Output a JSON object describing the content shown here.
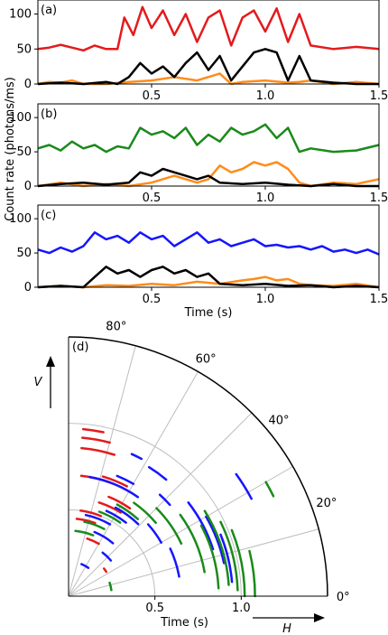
{
  "chart_data": [
    {
      "type": "line",
      "panel_label": "(a)",
      "xlim": [
        0.0,
        1.5
      ],
      "ylim": [
        0,
        120
      ],
      "xticks": [
        "0.5",
        "1.0",
        "1.5"
      ],
      "yticks": [
        "0",
        "50",
        "100"
      ],
      "xlabel": "",
      "ylabel": "",
      "series": [
        {
          "color": "#e41a1c",
          "x": [
            0.0,
            0.05,
            0.1,
            0.15,
            0.2,
            0.25,
            0.3,
            0.35,
            0.38,
            0.42,
            0.46,
            0.5,
            0.55,
            0.6,
            0.65,
            0.7,
            0.75,
            0.8,
            0.85,
            0.9,
            0.95,
            1.0,
            1.05,
            1.1,
            1.15,
            1.2,
            1.3,
            1.4,
            1.5
          ],
          "y": [
            50,
            52,
            56,
            52,
            48,
            55,
            50,
            50,
            95,
            70,
            110,
            80,
            105,
            70,
            100,
            60,
            95,
            105,
            55,
            95,
            105,
            75,
            108,
            60,
            100,
            55,
            50,
            53,
            50
          ]
        },
        {
          "color": "#ff8c1a",
          "x": [
            0.0,
            0.05,
            0.1,
            0.15,
            0.2,
            0.3,
            0.4,
            0.5,
            0.6,
            0.7,
            0.8,
            0.85,
            0.9,
            1.0,
            1.1,
            1.15,
            1.2,
            1.3,
            1.4,
            1.5
          ],
          "y": [
            0,
            3,
            2,
            5,
            0,
            0,
            3,
            5,
            10,
            5,
            15,
            0,
            3,
            5,
            2,
            3,
            5,
            0,
            3,
            0
          ]
        },
        {
          "color": "#000000",
          "x": [
            0.0,
            0.1,
            0.2,
            0.3,
            0.35,
            0.4,
            0.45,
            0.5,
            0.55,
            0.6,
            0.65,
            0.7,
            0.75,
            0.8,
            0.85,
            0.9,
            0.95,
            1.0,
            1.05,
            1.1,
            1.15,
            1.2,
            1.3,
            1.4,
            1.5
          ],
          "y": [
            0,
            2,
            0,
            3,
            0,
            10,
            30,
            15,
            25,
            10,
            30,
            45,
            20,
            40,
            5,
            25,
            45,
            50,
            45,
            5,
            40,
            5,
            2,
            0,
            0
          ]
        }
      ]
    },
    {
      "type": "line",
      "panel_label": "(b)",
      "xlim": [
        0.0,
        1.5
      ],
      "ylim": [
        0,
        120
      ],
      "xticks": [
        "0.5",
        "1.0",
        "1.5"
      ],
      "yticks": [
        "0",
        "50",
        "100"
      ],
      "xlabel": "",
      "ylabel": "",
      "series": [
        {
          "color": "#1a8a1a",
          "x": [
            0.0,
            0.05,
            0.1,
            0.15,
            0.2,
            0.25,
            0.3,
            0.35,
            0.4,
            0.45,
            0.5,
            0.55,
            0.6,
            0.65,
            0.7,
            0.75,
            0.8,
            0.85,
            0.9,
            0.95,
            1.0,
            1.05,
            1.1,
            1.15,
            1.2,
            1.3,
            1.4,
            1.5
          ],
          "y": [
            55,
            60,
            52,
            65,
            55,
            60,
            50,
            58,
            55,
            85,
            75,
            80,
            70,
            85,
            60,
            75,
            65,
            85,
            75,
            80,
            90,
            70,
            85,
            50,
            55,
            50,
            52,
            60
          ]
        },
        {
          "color": "#ff8c1a",
          "x": [
            0.0,
            0.1,
            0.2,
            0.3,
            0.4,
            0.5,
            0.6,
            0.7,
            0.75,
            0.8,
            0.85,
            0.9,
            0.95,
            1.0,
            1.05,
            1.1,
            1.15,
            1.2,
            1.3,
            1.4,
            1.5
          ],
          "y": [
            0,
            5,
            0,
            3,
            0,
            5,
            15,
            5,
            10,
            30,
            20,
            25,
            35,
            30,
            35,
            25,
            5,
            0,
            5,
            3,
            10
          ]
        },
        {
          "color": "#000000",
          "x": [
            0.0,
            0.1,
            0.2,
            0.3,
            0.4,
            0.45,
            0.5,
            0.55,
            0.6,
            0.65,
            0.7,
            0.75,
            0.8,
            0.9,
            1.0,
            1.1,
            1.2,
            1.3,
            1.4,
            1.5
          ],
          "y": [
            0,
            3,
            5,
            2,
            5,
            20,
            15,
            25,
            20,
            15,
            10,
            15,
            5,
            3,
            5,
            2,
            0,
            3,
            0,
            0
          ]
        }
      ]
    },
    {
      "type": "line",
      "panel_label": "(c)",
      "xlim": [
        0.0,
        1.5
      ],
      "ylim": [
        0,
        120
      ],
      "xticks": [
        "0.5",
        "1.0",
        "1.5"
      ],
      "yticks": [
        "0",
        "50",
        "100"
      ],
      "xlabel": "Time (s)",
      "ylabel": "",
      "series": [
        {
          "color": "#1515ff",
          "x": [
            0.0,
            0.05,
            0.1,
            0.15,
            0.2,
            0.25,
            0.3,
            0.35,
            0.4,
            0.45,
            0.5,
            0.55,
            0.6,
            0.65,
            0.7,
            0.75,
            0.8,
            0.85,
            0.9,
            0.95,
            1.0,
            1.05,
            1.1,
            1.15,
            1.2,
            1.25,
            1.3,
            1.35,
            1.4,
            1.45,
            1.5
          ],
          "y": [
            55,
            50,
            58,
            52,
            60,
            80,
            70,
            75,
            65,
            80,
            70,
            75,
            60,
            70,
            80,
            65,
            70,
            60,
            65,
            70,
            60,
            62,
            58,
            60,
            55,
            60,
            52,
            55,
            50,
            55,
            48
          ]
        },
        {
          "color": "#ff8c1a",
          "x": [
            0.0,
            0.1,
            0.2,
            0.3,
            0.4,
            0.5,
            0.6,
            0.7,
            0.8,
            0.9,
            0.95,
            1.0,
            1.05,
            1.1,
            1.15,
            1.2,
            1.3,
            1.4,
            1.5
          ],
          "y": [
            0,
            2,
            0,
            3,
            2,
            5,
            3,
            8,
            5,
            10,
            12,
            15,
            10,
            12,
            5,
            3,
            2,
            5,
            0
          ]
        },
        {
          "color": "#000000",
          "x": [
            0.0,
            0.1,
            0.2,
            0.25,
            0.3,
            0.35,
            0.4,
            0.45,
            0.5,
            0.55,
            0.6,
            0.65,
            0.7,
            0.75,
            0.8,
            0.9,
            1.0,
            1.1,
            1.2,
            1.3,
            1.4,
            1.5
          ],
          "y": [
            0,
            2,
            0,
            15,
            30,
            20,
            25,
            15,
            25,
            30,
            20,
            25,
            15,
            20,
            5,
            3,
            5,
            2,
            3,
            0,
            2,
            0
          ]
        }
      ]
    },
    {
      "type": "polar",
      "panel_label": "(d)",
      "r_lim": [
        0.0,
        1.5
      ],
      "r_ticks": [
        "0.5",
        "1.0"
      ],
      "theta_ticks": [
        "0°",
        "20°",
        "40°",
        "60°",
        "80°"
      ],
      "xlabel": "Time (s)",
      "axis_arrow_x": "H",
      "axis_arrow_y": "V",
      "series": [
        {
          "color": "#e41a1c",
          "arcs": [
            {
              "r": 0.97,
              "t0": 78,
              "t1": 85
            },
            {
              "r": 0.92,
              "t0": 75,
              "t1": 85
            },
            {
              "r": 0.86,
              "t0": 72,
              "t1": 85
            },
            {
              "r": 0.72,
              "t0": 62,
              "t1": 74
            },
            {
              "r": 0.7,
              "t0": 70,
              "t1": 84
            },
            {
              "r": 0.62,
              "t0": 55,
              "t1": 68
            },
            {
              "r": 0.57,
              "t0": 58,
              "t1": 72
            },
            {
              "r": 0.5,
              "t0": 68,
              "t1": 82
            },
            {
              "r": 0.45,
              "t0": 70,
              "t1": 84
            },
            {
              "r": 0.35,
              "t0": 60,
              "t1": 72
            },
            {
              "r": 0.26,
              "t0": 33,
              "t1": 38
            }
          ]
        },
        {
          "color": "#1515ff",
          "arcs": [
            {
              "r": 1.2,
              "t0": 28,
              "t1": 36
            },
            {
              "r": 0.9,
              "t0": 62,
              "t1": 66
            },
            {
              "r": 0.88,
              "t0": 50,
              "t1": 58
            },
            {
              "r": 0.79,
              "t0": 42,
              "t1": 48
            },
            {
              "r": 0.75,
              "t0": 60,
              "t1": 68
            },
            {
              "r": 0.7,
              "t0": 55,
              "t1": 80
            },
            {
              "r": 0.65,
              "t0": 10,
              "t1": 25
            },
            {
              "r": 0.62,
              "t0": 30,
              "t1": 42
            },
            {
              "r": 0.58,
              "t0": 46,
              "t1": 62
            },
            {
              "r": 0.54,
              "t0": 52,
              "t1": 66
            },
            {
              "r": 0.48,
              "t0": 60,
              "t1": 78
            },
            {
              "r": 0.4,
              "t0": 50,
              "t1": 68
            },
            {
              "r": 0.32,
              "t0": 40,
              "t1": 52
            },
            {
              "r": 0.2,
              "t0": 55,
              "t1": 68
            },
            {
              "r": 0.95,
              "t0": 5,
              "t1": 22
            },
            {
              "r": 0.92,
              "t0": 12,
              "t1": 30
            },
            {
              "r": 0.88,
              "t0": 18,
              "t1": 38
            }
          ]
        },
        {
          "color": "#1a8a1a",
          "arcs": [
            {
              "r": 1.32,
              "t0": 26,
              "t1": 30
            },
            {
              "r": 1.08,
              "t0": 0,
              "t1": 14
            },
            {
              "r": 1.02,
              "t0": 0,
              "t1": 22
            },
            {
              "r": 0.98,
              "t0": 2,
              "t1": 26
            },
            {
              "r": 0.93,
              "t0": 4,
              "t1": 32
            },
            {
              "r": 0.87,
              "t0": 3,
              "t1": 28
            },
            {
              "r": 0.8,
              "t0": 10,
              "t1": 36
            },
            {
              "r": 0.72,
              "t0": 25,
              "t1": 45
            },
            {
              "r": 0.66,
              "t0": 40,
              "t1": 55
            },
            {
              "r": 0.6,
              "t0": 48,
              "t1": 62
            },
            {
              "r": 0.52,
              "t0": 55,
              "t1": 70
            },
            {
              "r": 0.44,
              "t0": 62,
              "t1": 78
            },
            {
              "r": 0.38,
              "t0": 68,
              "t1": 84
            },
            {
              "r": 0.25,
              "t0": 8,
              "t1": 18
            }
          ]
        }
      ]
    }
  ],
  "labels": {
    "ylabel_shared": "Count rate (photons/ms)"
  }
}
